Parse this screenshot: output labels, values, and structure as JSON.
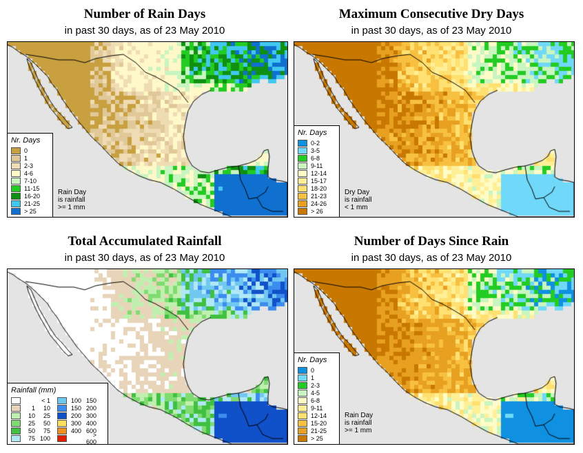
{
  "panels": [
    {
      "id": "rain_days",
      "title": "Number of Rain Days",
      "subtitle": "in past 30 days, as of  23 May 2010",
      "legend_title": "Nr. Days",
      "legend": [
        {
          "label": "0",
          "color": "#c8a040"
        },
        {
          "label": "1",
          "color": "#e0c898"
        },
        {
          "label": "2-3",
          "color": "#f0dcb4"
        },
        {
          "label": "4-6",
          "color": "#fff8c8"
        },
        {
          "label": "7-10",
          "color": "#c8f5c0"
        },
        {
          "label": "11-15",
          "color": "#22cc22"
        },
        {
          "label": "16-20",
          "color": "#109010"
        },
        {
          "label": "21-25",
          "color": "#40c8f0"
        },
        {
          "label": "> 25",
          "color": "#1070d0"
        }
      ],
      "note": [
        "Rain Day",
        "is rainfall",
        ">= 1 mm"
      ]
    },
    {
      "id": "dry_days",
      "title": "Maximum Consecutive Dry Days",
      "subtitle": "in past 30 days, as of  23 May 2010",
      "legend_title": "Nr. Days",
      "legend": [
        {
          "label": "0-2",
          "color": "#1090e0"
        },
        {
          "label": "3-5",
          "color": "#70d8f8"
        },
        {
          "label": "6-8",
          "color": "#22cc22"
        },
        {
          "label": "9-11",
          "color": "#c8f5c0"
        },
        {
          "label": "12-14",
          "color": "#fffcc8"
        },
        {
          "label": "15-17",
          "color": "#fff098"
        },
        {
          "label": "18-20",
          "color": "#ffe070"
        },
        {
          "label": "21-23",
          "color": "#f8c040"
        },
        {
          "label": "24-26",
          "color": "#e8a020"
        },
        {
          "label": "> 26",
          "color": "#c87800"
        }
      ],
      "note": [
        "Dry Day",
        "is rainfall",
        "< 1 mm"
      ]
    },
    {
      "id": "rainfall",
      "title": "Total Accumulated Rainfall",
      "subtitle": "in past 30 days, as of  23 May 2010",
      "legend_title": "Rainfall (mm)",
      "legend_left": [
        {
          "lo": "",
          "hi": "< 1",
          "color": "#ffffff"
        },
        {
          "lo": "1",
          "hi": "10",
          "color": "#e8d4b8"
        },
        {
          "lo": "10",
          "hi": "25",
          "color": "#c0f0b0"
        },
        {
          "lo": "25",
          "hi": "50",
          "color": "#80dc70"
        },
        {
          "lo": "50",
          "hi": "75",
          "color": "#40c040"
        },
        {
          "lo": "75",
          "hi": "100",
          "color": "#b0e8f8"
        }
      ],
      "legend_right": [
        {
          "lo": "100",
          "hi": "150",
          "color": "#70c8f0"
        },
        {
          "lo": "150",
          "hi": "200",
          "color": "#3c8cf0"
        },
        {
          "lo": "200",
          "hi": "300",
          "color": "#1050c8"
        },
        {
          "lo": "300",
          "hi": "400",
          "color": "#ffe060"
        },
        {
          "lo": "400",
          "hi": "600",
          "color": "#f09020"
        },
        {
          "lo": "",
          "hi": "> 600",
          "color": "#e02000"
        }
      ]
    },
    {
      "id": "since_rain",
      "title": "Number of Days Since Rain",
      "subtitle": "in past 30 days, as of  23 May 2010",
      "legend_title": "Nr. Days",
      "legend": [
        {
          "label": "0",
          "color": "#1090e0"
        },
        {
          "label": "1",
          "color": "#70d8f8"
        },
        {
          "label": "2-3",
          "color": "#22cc22"
        },
        {
          "label": "4-5",
          "color": "#c8f5c0"
        },
        {
          "label": "6-8",
          "color": "#fffcc8"
        },
        {
          "label": "9-11",
          "color": "#fff098"
        },
        {
          "label": "12-14",
          "color": "#ffe070"
        },
        {
          "label": "15-20",
          "color": "#f8c040"
        },
        {
          "label": "21-25",
          "color": "#e8a020"
        },
        {
          "label": "> 25",
          "color": "#c87800"
        }
      ],
      "note": [
        "Rain Day",
        "is rainfall",
        ">= 1 mm"
      ]
    }
  ],
  "colors": {
    "ocean": "#e4e4e4",
    "border": "#000000"
  }
}
